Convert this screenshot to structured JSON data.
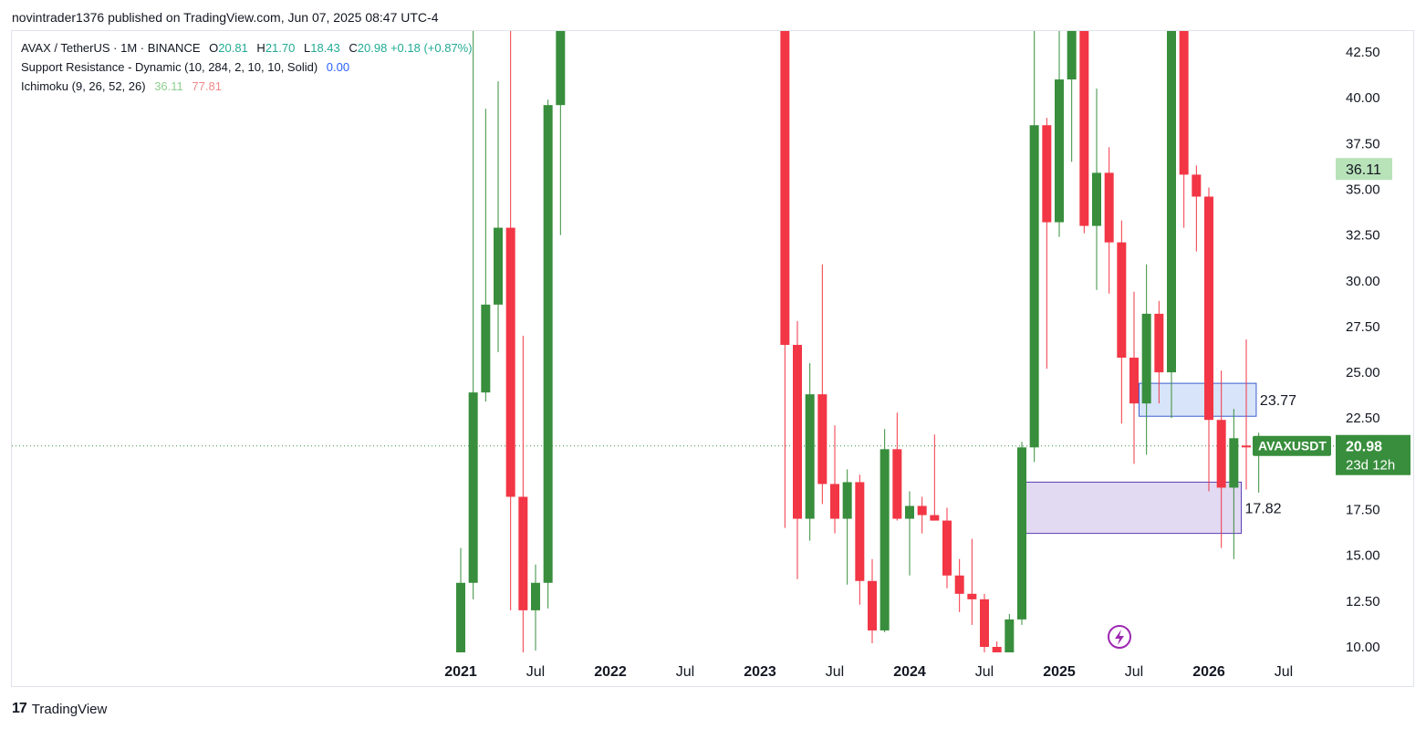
{
  "publisher_line": "novintrader1376 published on TradingView.com, Jun 07, 2025 08:47 UTC-4",
  "legend": {
    "symbol": "AVAX / TetherUS · 1M · BINANCE",
    "o_label": "O",
    "o": "20.81",
    "h_label": "H",
    "h": "21.70",
    "l_label": "L",
    "l": "18.43",
    "c_label": "C",
    "c": "20.98",
    "change": "+0.18 (+0.87%)",
    "indicator1_name": "Support Resistance - Dynamic (10, 284, 2, 10, 10, Solid)",
    "indicator1_value": "0.00",
    "indicator2_name": "Ichimoku (9, 26, 52, 26)",
    "indicator2_value1": "36.11",
    "indicator2_value2": "77.81"
  },
  "footer": {
    "brand": "TradingView",
    "logo": "17"
  },
  "colors": {
    "up": "#388e3c",
    "down": "#f23645",
    "zone_blue_fill": "rgba(100,149,237,0.25)",
    "zone_blue_stroke": "#3a5fd0",
    "zone_purple_fill": "rgba(150,120,210,0.28)",
    "zone_purple_stroke": "#5a3fb5",
    "cloud_line": "#7ccf7c",
    "price_label_bg": "#388e3c",
    "ichimoku_label_bg": "#b8e2b8"
  },
  "chart_data": {
    "type": "candlestick",
    "interval": "1M",
    "y_ticks": [
      "42.50",
      "40.00",
      "37.50",
      "35.00",
      "32.50",
      "30.00",
      "27.50",
      "25.00",
      "22.50",
      "17.50",
      "15.00",
      "12.50",
      "10.00"
    ],
    "x_ticks": [
      {
        "label": "2021",
        "bold": true,
        "t": 0
      },
      {
        "label": "Jul",
        "bold": false,
        "t": 6
      },
      {
        "label": "2022",
        "bold": true,
        "t": 12
      },
      {
        "label": "Jul",
        "bold": false,
        "t": 18
      },
      {
        "label": "2023",
        "bold": true,
        "t": 24
      },
      {
        "label": "Jul",
        "bold": false,
        "t": 30
      },
      {
        "label": "2024",
        "bold": true,
        "t": 36
      },
      {
        "label": "Jul",
        "bold": false,
        "t": 42
      },
      {
        "label": "2025",
        "bold": true,
        "t": 48
      },
      {
        "label": "Jul",
        "bold": false,
        "t": 54
      },
      {
        "label": "2026",
        "bold": true,
        "t": 60
      },
      {
        "label": "Jul",
        "bold": false,
        "t": 66
      }
    ],
    "y_range": [
      9.0,
      44.2
    ],
    "candles": [
      {
        "t": 0,
        "o": 9.0,
        "h": 15.4,
        "l": 9.0,
        "c": 13.5
      },
      {
        "t": 0.5,
        "o": 13.5,
        "h": 44.2,
        "l": 12.6,
        "c": 23.9
      },
      {
        "t": 1,
        "o": 23.9,
        "h": 39.4,
        "l": 23.4,
        "c": 28.7
      },
      {
        "t": 1.5,
        "o": 28.7,
        "h": 40.9,
        "l": 26.1,
        "c": 32.9
      },
      {
        "t": 2,
        "o": 32.9,
        "h": 44.2,
        "l": 12.0,
        "c": 18.2
      },
      {
        "t": 2.5,
        "o": 18.2,
        "h": 27.0,
        "l": 9.5,
        "c": 12.0
      },
      {
        "t": 3,
        "o": 12.0,
        "h": 14.5,
        "l": 9.8,
        "c": 13.5
      },
      {
        "t": 3.5,
        "o": 13.5,
        "h": 39.9,
        "l": 12.1,
        "c": 39.6
      },
      {
        "t": 4,
        "o": 39.6,
        "h": 44.2,
        "l": 32.5,
        "c": 44.2
      },
      {
        "t": 13.0,
        "o": 44.2,
        "h": 44.2,
        "l": 16.5,
        "c": 26.5
      },
      {
        "t": 13.5,
        "o": 26.5,
        "h": 27.8,
        "l": 13.7,
        "c": 17.0
      },
      {
        "t": 14.0,
        "o": 17.0,
        "h": 25.5,
        "l": 15.8,
        "c": 23.8
      },
      {
        "t": 14.5,
        "o": 23.8,
        "h": 30.9,
        "l": 17.8,
        "c": 18.9
      },
      {
        "t": 15.0,
        "o": 18.9,
        "h": 22.1,
        "l": 16.2,
        "c": 17.0
      },
      {
        "t": 15.5,
        "o": 17.0,
        "h": 19.7,
        "l": 13.4,
        "c": 19.0
      },
      {
        "t": 16.0,
        "o": 19.0,
        "h": 19.4,
        "l": 12.3,
        "c": 13.6
      },
      {
        "t": 16.5,
        "o": 13.6,
        "h": 14.8,
        "l": 10.2,
        "c": 10.9
      },
      {
        "t": 17.0,
        "o": 10.9,
        "h": 21.9,
        "l": 10.8,
        "c": 20.8
      },
      {
        "t": 17.5,
        "o": 20.8,
        "h": 22.8,
        "l": 16.9,
        "c": 17.0
      },
      {
        "t": 18.0,
        "o": 17.0,
        "h": 18.5,
        "l": 13.9,
        "c": 17.7
      },
      {
        "t": 18.5,
        "o": 17.7,
        "h": 18.2,
        "l": 16.2,
        "c": 17.2
      },
      {
        "t": 19.0,
        "o": 17.2,
        "h": 21.6,
        "l": 16.9,
        "c": 16.9
      },
      {
        "t": 19.5,
        "o": 16.9,
        "h": 17.6,
        "l": 13.2,
        "c": 13.9
      },
      {
        "t": 20.0,
        "o": 13.9,
        "h": 14.8,
        "l": 11.9,
        "c": 12.9
      },
      {
        "t": 20.5,
        "o": 12.9,
        "h": 15.9,
        "l": 11.2,
        "c": 12.6
      },
      {
        "t": 21.0,
        "o": 12.6,
        "h": 12.9,
        "l": 9.6,
        "c": 10.0
      },
      {
        "t": 21.5,
        "o": 10.0,
        "h": 10.3,
        "l": 9.0,
        "c": 9.7
      },
      {
        "t": 22.0,
        "o": 9.7,
        "h": 11.8,
        "l": 9.0,
        "c": 11.5
      },
      {
        "t": 22.5,
        "o": 11.5,
        "h": 21.2,
        "l": 11.2,
        "c": 20.9
      },
      {
        "t": 23.0,
        "o": 20.9,
        "h": 44.2,
        "l": 20.1,
        "c": 38.5
      },
      {
        "t": 23.5,
        "o": 38.5,
        "h": 38.9,
        "l": 25.2,
        "c": 33.2
      },
      {
        "t": 24.0,
        "o": 33.2,
        "h": 44.2,
        "l": 32.4,
        "c": 41.0
      },
      {
        "t": 24.5,
        "o": 41.0,
        "h": 44.2,
        "l": 36.5,
        "c": 44.2
      },
      {
        "t": 25.0,
        "o": 44.2,
        "h": 44.2,
        "l": 32.6,
        "c": 33.0
      },
      {
        "t": 25.5,
        "o": 33.0,
        "h": 40.5,
        "l": 29.5,
        "c": 35.9
      },
      {
        "t": 26.0,
        "o": 35.9,
        "h": 37.3,
        "l": 29.3,
        "c": 32.1
      },
      {
        "t": 26.5,
        "o": 32.1,
        "h": 33.3,
        "l": 22.2,
        "c": 25.8
      },
      {
        "t": 27.0,
        "o": 25.8,
        "h": 29.4,
        "l": 20.0,
        "c": 23.3
      },
      {
        "t": 27.5,
        "o": 23.3,
        "h": 30.9,
        "l": 20.5,
        "c": 28.2
      },
      {
        "t": 28.0,
        "o": 28.2,
        "h": 28.9,
        "l": 23.3,
        "c": 25.0
      },
      {
        "t": 28.5,
        "o": 25.0,
        "h": 44.2,
        "l": 22.5,
        "c": 44.2
      },
      {
        "t": 29.0,
        "o": 44.2,
        "h": 44.2,
        "l": 32.9,
        "c": 35.8
      },
      {
        "t": 29.5,
        "o": 35.8,
        "h": 36.3,
        "l": 31.6,
        "c": 34.6
      },
      {
        "t": 30.0,
        "o": 34.6,
        "h": 35.1,
        "l": 18.5,
        "c": 22.4
      },
      {
        "t": 30.5,
        "o": 22.4,
        "h": 25.1,
        "l": 15.4,
        "c": 18.7
      },
      {
        "t": 31.0,
        "o": 18.7,
        "h": 23.0,
        "l": 14.8,
        "c": 21.4
      },
      {
        "t": 31.5,
        "o": 21.0,
        "h": 26.8,
        "l": 18.6,
        "c": 20.9
      },
      {
        "t": 32.0,
        "o": 20.81,
        "h": 21.7,
        "l": 18.43,
        "c": 20.98
      }
    ],
    "zones": [
      {
        "label": "23.77",
        "t0": 27.2,
        "t1": 31.9,
        "lo": 22.6,
        "hi": 24.4,
        "style": "blue"
      },
      {
        "label": "17.82",
        "t0": 22.6,
        "t1": 31.3,
        "lo": 16.2,
        "hi": 19.0,
        "style": "purple"
      }
    ],
    "cloud_line": [
      {
        "t": 37.4,
        "y": 44.2
      },
      {
        "t": 37.9,
        "y": 38.1
      },
      {
        "t": 38.3,
        "y": 37.6
      },
      {
        "t": 38.8,
        "y": 39.2
      },
      {
        "t": 40.6,
        "y": 39.2
      }
    ],
    "last_price": "20.98",
    "last_price_symbol": "AVAXUSDT",
    "countdown": "23d 12h",
    "ichimoku_label": "36.11"
  }
}
